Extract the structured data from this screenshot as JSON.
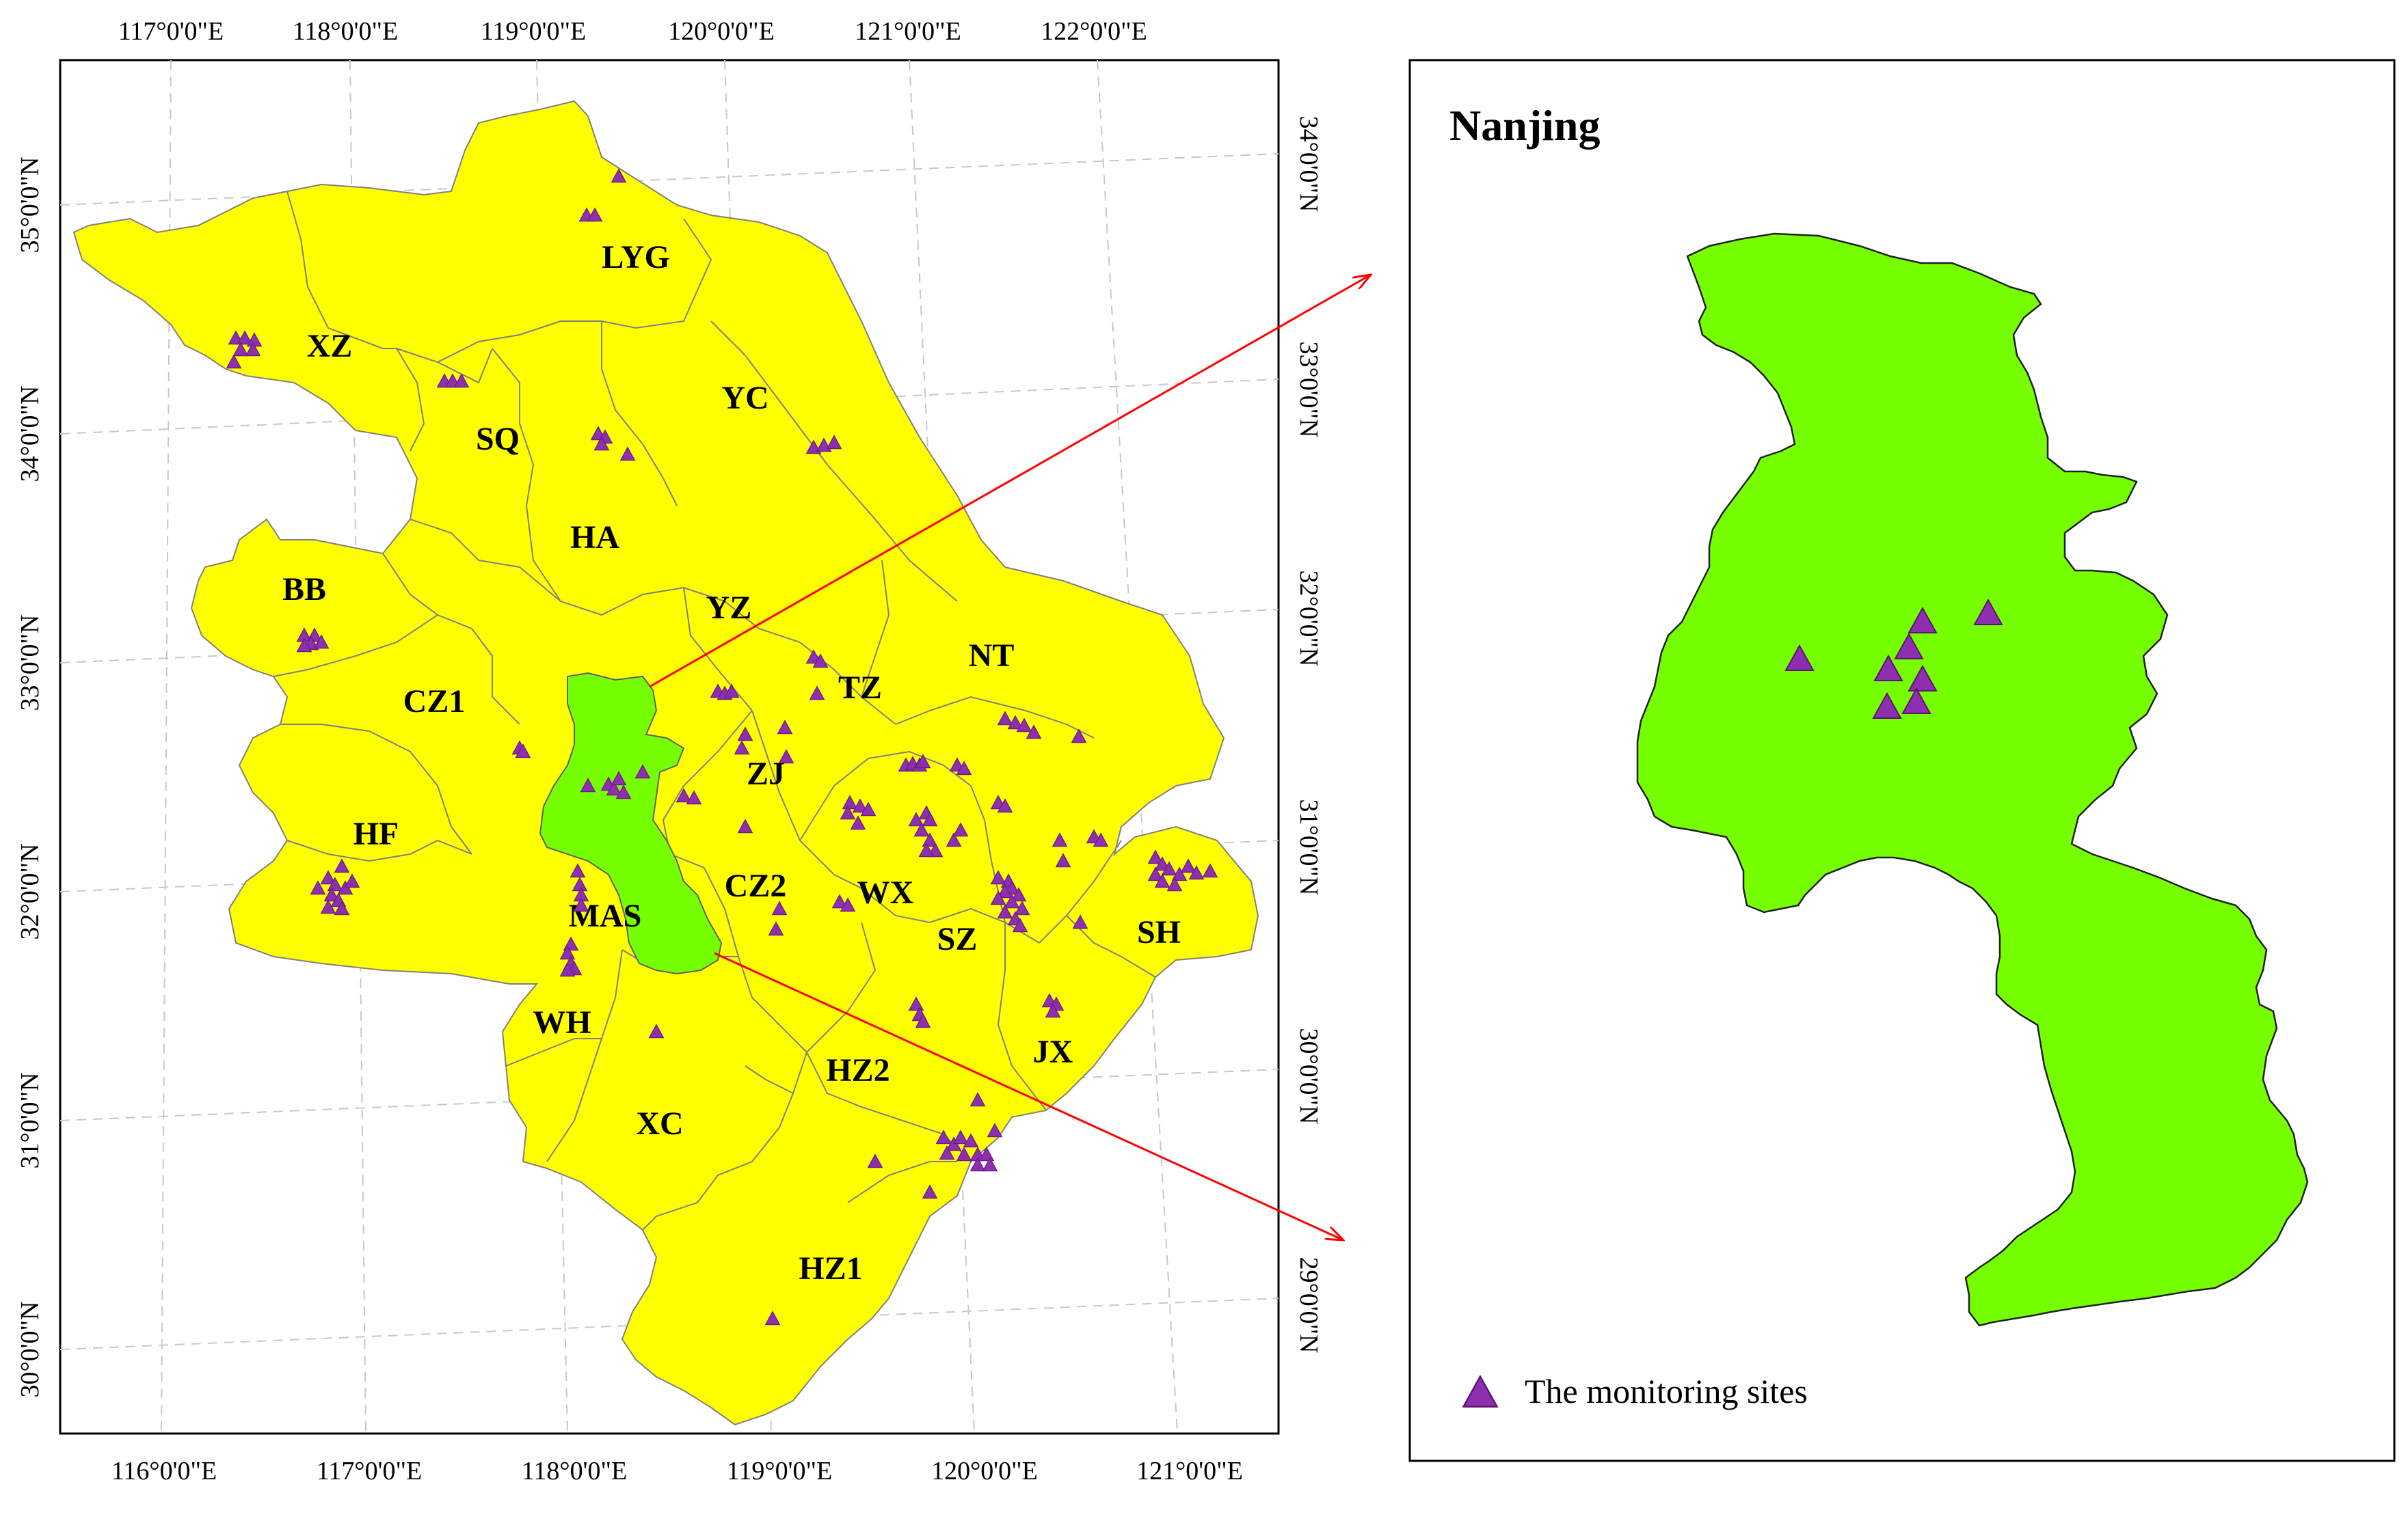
{
  "main_map": {
    "top_ticks": [
      "117°0'0\"E",
      "118°0'0\"E",
      "119°0'0\"E",
      "120°0'0\"E",
      "121°0'0\"E",
      "122°0'0\"E"
    ],
    "bottom_ticks": [
      "116°0'0\"E",
      "117°0'0\"E",
      "118°0'0\"E",
      "119°0'0\"E",
      "120°0'0\"E",
      "121°0'0\"E"
    ],
    "left_ticks": [
      "35°0'0\"N",
      "34°0'0\"N",
      "33°0'0\"N",
      "32°0'0\"N",
      "31°0'0\"N",
      "30°0'0\"N"
    ],
    "right_ticks": [
      "34°0'0\"N",
      "33°0'0\"N",
      "32°0'0\"N",
      "31°0'0\"N",
      "30°0'0\"N",
      "29°0'0\"N"
    ],
    "city_labels": [
      "LYG",
      "XZ",
      "SQ",
      "YC",
      "HA",
      "BB",
      "YZ",
      "NT",
      "CZ1",
      "TZ",
      "ZJ",
      "HF",
      "CZ2",
      "WX",
      "MAS",
      "SZ",
      "SH",
      "WH",
      "JX",
      "HZ2",
      "XC",
      "HZ1"
    ]
  },
  "inset": {
    "title": "Nanjing",
    "legend_label": "The monitoring sites"
  },
  "colors": {
    "region_fill": "#ffff00",
    "highlight_fill": "#76ff00",
    "site_marker": "#8e2fb0",
    "arrow": "#ff0000"
  }
}
